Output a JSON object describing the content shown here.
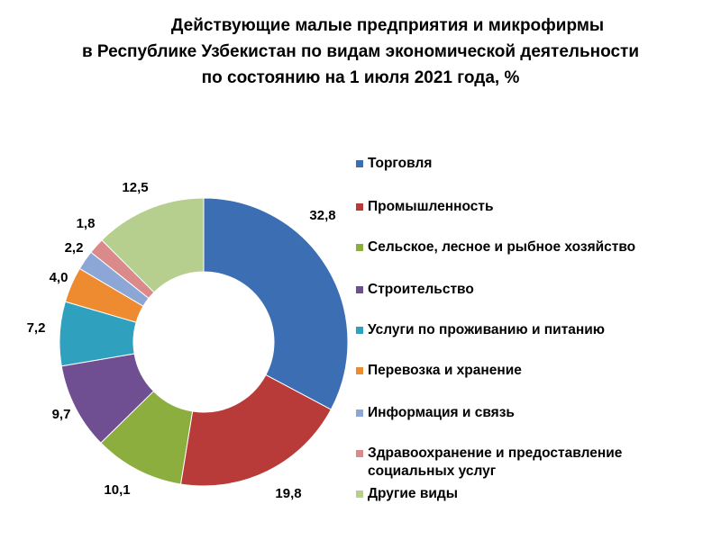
{
  "chart_data": {
    "type": "pie",
    "donut": true,
    "title_lines": [
      "Действующие малые предприятия и микрофирмы",
      "в Республике Узбекистан по видам экономической деятельности",
      "по состоянию на 1 июля 2021 года, %"
    ],
    "legend_position": "right",
    "slices": [
      {
        "name": "Торговля",
        "value": 32.8,
        "label": "32,8",
        "color": "#3C6EB4"
      },
      {
        "name": "Промышленность",
        "value": 19.8,
        "label": "19,8",
        "color": "#B83B39"
      },
      {
        "name": "Сельское, лесное и рыбное хозяйство",
        "value": 10.1,
        "label": "10,1",
        "color": "#8CAE3F"
      },
      {
        "name": "Строительство",
        "value": 9.7,
        "label": "9,7",
        "color": "#6F4E92"
      },
      {
        "name": "Услуги по проживанию и питанию",
        "value": 7.2,
        "label": "7,2",
        "color": "#2FA1BE"
      },
      {
        "name": "Перевозка и хранение",
        "value": 4.0,
        "label": "4,0",
        "color": "#EE8A2F"
      },
      {
        "name": "Информация и связь",
        "value": 2.2,
        "label": "2,2",
        "color": "#8CA6D6"
      },
      {
        "name": "Здравоохранение и предоставление социальных услуг",
        "value": 1.8,
        "label": "1,8",
        "color": "#D98A89"
      },
      {
        "name": "Другие виды",
        "value": 12.5,
        "label": "12,5",
        "color": "#B6CF8E"
      }
    ]
  }
}
